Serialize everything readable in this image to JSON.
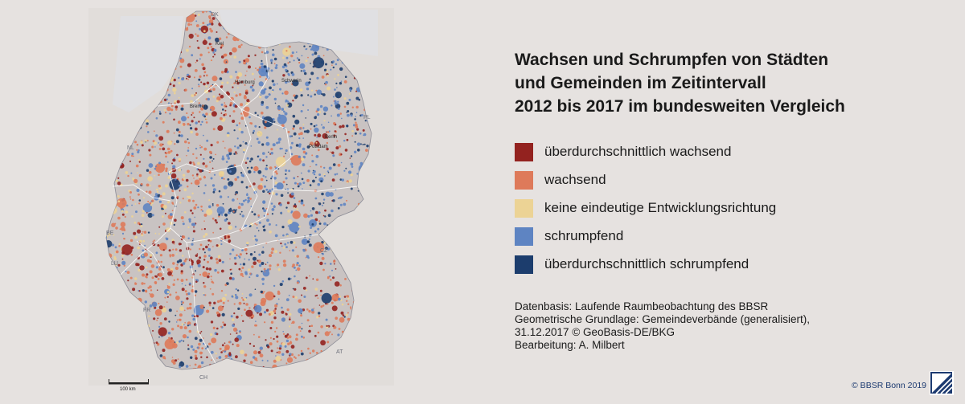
{
  "title": {
    "line1": "Wachsen und Schrumpfen von Städten",
    "line2": "und Gemeinden im Zeitintervall",
    "line3": "2012  bis 2017 im bundesweiten Vergleich"
  },
  "legend": [
    {
      "label": "überdurchschnittlich wachsend",
      "color": "#93221f"
    },
    {
      "label": "wachsend",
      "color": "#de7a5a"
    },
    {
      "label": "keine eindeutige Entwicklungsrichtung",
      "color": "#ecd395"
    },
    {
      "label": "schrumpfend",
      "color": "#5e84c2"
    },
    {
      "label": "überdurchschnittlich schrumpfend",
      "color": "#1c3d6d"
    }
  ],
  "credits": {
    "line1": "Datenbasis: Laufende Raumbeobachtung des BBSR",
    "line2": "Geometrische Grundlage: Gemeindeverbände (generalisiert),",
    "line3": "31.12.2017 © GeoBasis-DE/BKG",
    "line4": "Bearbeitung: A. Milbert"
  },
  "copyright": "© BBSR Bonn 2019",
  "scale_bar": {
    "label": "100 km"
  },
  "neighbor_labels": {
    "dk": "DK",
    "nl": "NL",
    "pl": "PL",
    "be": "BE",
    "lu": "LU",
    "cz": "CZ",
    "fr": "FR",
    "at": "AT",
    "ch": "CH"
  },
  "city_labels": {
    "kiel": "Kiel",
    "schwerin": "Schwerin",
    "potsdam": "Potsdam",
    "hamburg": "Hamburg",
    "bremen": "Bremen",
    "berlin": "Berlin"
  },
  "colors": {
    "background": "#e6e2e0",
    "germany_fill": "#c9c3c2",
    "border": "#ffffff",
    "neighbor_fill": "#dcd8d6",
    "water": "#cfd5df"
  }
}
